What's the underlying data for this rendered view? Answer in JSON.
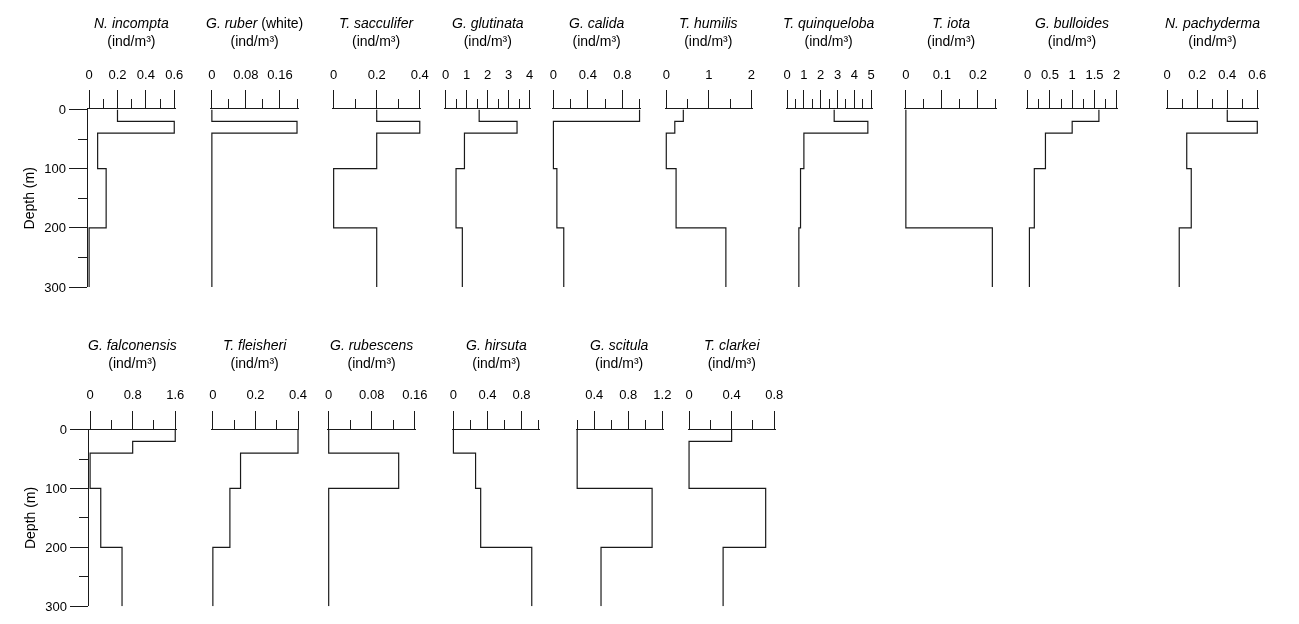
{
  "chart_data": [
    {
      "type": "step",
      "orientation": "horizontal",
      "title": "N. incompta",
      "xlabel": "(ind/m³)",
      "ylabel": "Depth (m)",
      "color": "#1a1a1a",
      "x": [
        0,
        20,
        40,
        100,
        200,
        300
      ],
      "values": [
        0.2,
        0.6,
        0.06,
        0.12,
        0,
        0
      ],
      "xlim": [
        0,
        0.6
      ],
      "xticks": [
        0,
        {
          "value": 0.1,
          "label": null
        },
        0.2,
        {
          "value": 0.3,
          "label": null
        },
        0.4,
        {
          "value": 0.5,
          "label": null
        },
        0.6
      ],
      "ylim": [
        300,
        0
      ],
      "yticks": [
        0,
        {
          "value": 50,
          "label": null
        },
        100,
        {
          "value": 150,
          "label": null
        },
        200,
        {
          "value": 250,
          "label": null
        },
        300
      ]
    },
    {
      "type": "step",
      "orientation": "horizontal",
      "title": "G. ruber (white)",
      "xlabel": "(ind/m³)",
      "color": "#1a1a1a",
      "x": [
        0,
        20,
        40,
        100,
        200,
        300
      ],
      "values": [
        0,
        0.2,
        0,
        0,
        0,
        0
      ],
      "xlim": [
        0,
        0.2
      ],
      "xticks": [
        0,
        {
          "value": 0.04,
          "label": null
        },
        0.08,
        {
          "value": 0.12,
          "label": null
        },
        0.16,
        {
          "value": 0.2,
          "label": null
        }
      ],
      "ylim": [
        300,
        0
      ],
      "tick_labels": "x"
    },
    {
      "type": "step",
      "orientation": "horizontal",
      "title": "T. sacculifer",
      "xlabel": "(ind/m³)",
      "color": "#1a1a1a",
      "x": [
        0,
        20,
        40,
        100,
        200,
        300
      ],
      "values": [
        0.2,
        0.4,
        0.2,
        0,
        0.2,
        0.2
      ],
      "xlim": [
        0,
        0.4
      ],
      "xticks": [
        0,
        {
          "value": 0.1,
          "label": null
        },
        0.2,
        {
          "value": 0.3,
          "label": null
        },
        0.4
      ],
      "ylim": [
        300,
        0
      ],
      "tick_labels": "x"
    },
    {
      "type": "step",
      "orientation": "horizontal",
      "title": "G. glutinata",
      "xlabel": "(ind/m³)",
      "color": "#1a1a1a",
      "x": [
        0,
        20,
        40,
        100,
        200,
        300
      ],
      "values": [
        1.6,
        3.4,
        0.9,
        0.5,
        0.8,
        0.8
      ],
      "xlim": [
        0,
        4
      ],
      "xticks": [
        0,
        {
          "value": 0.5,
          "label": null
        },
        1,
        {
          "value": 1.5,
          "label": null
        },
        2,
        {
          "value": 2.5,
          "label": null
        },
        3,
        {
          "value": 3.5,
          "label": null
        },
        4
      ],
      "ylim": [
        300,
        0
      ],
      "tick_labels": "x"
    },
    {
      "type": "step",
      "orientation": "horizontal",
      "title": "G. calida",
      "xlabel": "(ind/m³)",
      "color": "#1a1a1a",
      "x": [
        0,
        20,
        40,
        100,
        200,
        300
      ],
      "values": [
        1,
        0,
        0,
        0.04,
        0.12,
        0.12
      ],
      "xlim": [
        0,
        1
      ],
      "xticks": [
        0,
        {
          "value": 0.2,
          "label": null
        },
        0.4,
        {
          "value": 0.6,
          "label": null
        },
        0.8,
        {
          "value": 1,
          "label": null
        }
      ],
      "ylim": [
        300,
        0
      ],
      "tick_labels": "x"
    },
    {
      "type": "step",
      "orientation": "horizontal",
      "title": "T. humilis",
      "xlabel": "(ind/m³)",
      "color": "#1a1a1a",
      "x": [
        0,
        20,
        40,
        100,
        200,
        300
      ],
      "values": [
        0.4,
        0.2,
        0,
        0.23,
        1.4,
        1.4
      ],
      "xlim": [
        0,
        2
      ],
      "xticks": [
        0,
        {
          "value": 0.5,
          "label": null
        },
        1,
        {
          "value": 1.5,
          "label": null
        },
        2
      ],
      "ylim": [
        300,
        0
      ],
      "tick_labels": "x"
    },
    {
      "type": "step",
      "orientation": "horizontal",
      "title": "T. quinqueloba",
      "xlabel": "(ind/m³)",
      "color": "#1a1a1a",
      "x": [
        0,
        20,
        40,
        100,
        200,
        300
      ],
      "values": [
        2.8,
        4.8,
        1,
        0.8,
        0.7,
        0.7
      ],
      "xlim": [
        0,
        5
      ],
      "xticks": [
        0,
        {
          "value": 0.5,
          "label": null
        },
        1,
        {
          "value": 1.5,
          "label": null
        },
        2,
        {
          "value": 2.5,
          "label": null
        },
        3,
        {
          "value": 3.5,
          "label": null
        },
        4,
        {
          "value": 4.5,
          "label": null
        },
        5
      ],
      "ylim": [
        300,
        0
      ],
      "tick_labels": "x"
    },
    {
      "type": "step",
      "orientation": "horizontal",
      "title": "T. iota",
      "xlabel": "(ind/m³)",
      "color": "#1a1a1a",
      "x": [
        0,
        20,
        40,
        100,
        200,
        300
      ],
      "values": [
        0,
        0,
        0,
        0,
        0.24,
        0.24
      ],
      "xlim": [
        0,
        0.25
      ],
      "xticks": [
        0,
        {
          "value": 0.05,
          "label": null
        },
        0.1,
        {
          "value": 0.15,
          "label": null
        },
        0.2,
        {
          "value": 0.25,
          "label": null
        }
      ],
      "ylim": [
        300,
        0
      ],
      "tick_labels": "x"
    },
    {
      "type": "step",
      "orientation": "horizontal",
      "title": "G. bulloides",
      "xlabel": "(ind/m³)",
      "color": "#1a1a1a",
      "x": [
        0,
        20,
        40,
        100,
        200,
        300
      ],
      "values": [
        1.6,
        1,
        0.4,
        0.15,
        0.04,
        0.04
      ],
      "xlim": [
        0,
        2
      ],
      "xticks": [
        0,
        {
          "value": 0.25,
          "label": null
        },
        0.5,
        {
          "value": 0.75,
          "label": null
        },
        1,
        {
          "value": 1.25,
          "label": null
        },
        1.5,
        {
          "value": 1.75,
          "label": null
        },
        2
      ],
      "ylim": [
        300,
        0
      ],
      "tick_labels": "x"
    },
    {
      "type": "step",
      "orientation": "horizontal",
      "title": "N. pachyderma",
      "xlabel": "(ind/m³)",
      "color": "#1a1a1a",
      "x": [
        0,
        20,
        40,
        100,
        200,
        300
      ],
      "values": [
        0.4,
        0.6,
        0.13,
        0.16,
        0.08,
        0.08
      ],
      "xlim": [
        0,
        0.6
      ],
      "xticks": [
        0,
        {
          "value": 0.1,
          "label": null
        },
        0.2,
        {
          "value": 0.3,
          "label": null
        },
        0.4,
        {
          "value": 0.5,
          "label": null
        },
        0.6
      ],
      "ylim": [
        300,
        0
      ],
      "tick_labels": "x"
    },
    {
      "type": "step",
      "orientation": "horizontal",
      "title": "G. falconensis",
      "xlabel": "(ind/m³)",
      "ylabel": "Depth (m)",
      "color": "#1a1a1a",
      "x": [
        0,
        20,
        40,
        100,
        200,
        300
      ],
      "values": [
        1.6,
        0.8,
        0,
        0.2,
        0.6,
        0.6
      ],
      "xlim": [
        0,
        1.6
      ],
      "xticks": [
        0,
        {
          "value": 0.4,
          "label": null
        },
        0.8,
        {
          "value": 1.2,
          "label": null
        },
        1.6
      ],
      "ylim": [
        300,
        0
      ],
      "yticks": [
        0,
        {
          "value": 50,
          "label": null
        },
        100,
        {
          "value": 150,
          "label": null
        },
        200,
        {
          "value": 250,
          "label": null
        },
        300
      ]
    },
    {
      "type": "step",
      "orientation": "horizontal",
      "title": "T. fleisheri",
      "xlabel": "(ind/m³)",
      "color": "#1a1a1a",
      "x": [
        0,
        20,
        40,
        100,
        200,
        300
      ],
      "values": [
        0.4,
        0.4,
        0.13,
        0.08,
        0,
        0
      ],
      "xlim": [
        0,
        0.4
      ],
      "xticks": [
        0,
        {
          "value": 0.1,
          "label": null
        },
        0.2,
        {
          "value": 0.3,
          "label": null
        },
        0.4
      ],
      "ylim": [
        300,
        0
      ],
      "tick_labels": "x"
    },
    {
      "type": "step",
      "orientation": "horizontal",
      "title": "G. rubescens",
      "xlabel": "(ind/m³)",
      "color": "#1a1a1a",
      "x": [
        0,
        20,
        40,
        100,
        200,
        300
      ],
      "values": [
        0,
        0,
        0.13,
        0,
        0,
        0
      ],
      "xlim": [
        0,
        0.16
      ],
      "xticks": [
        0,
        {
          "value": 0.04,
          "label": null
        },
        0.08,
        {
          "value": 0.12,
          "label": null
        },
        0.16
      ],
      "ylim": [
        300,
        0
      ],
      "tick_labels": "x"
    },
    {
      "type": "step",
      "orientation": "horizontal",
      "title": "G. hirsuta",
      "xlabel": "(ind/m³)",
      "color": "#1a1a1a",
      "x": [
        0,
        20,
        40,
        100,
        200,
        300
      ],
      "values": [
        0,
        0,
        0.26,
        0.32,
        0.92,
        0.92
      ],
      "xlim": [
        0,
        1
      ],
      "xticks": [
        0,
        {
          "value": 0.2,
          "label": null
        },
        0.4,
        {
          "value": 0.6,
          "label": null
        },
        0.8,
        {
          "value": 1,
          "label": null
        }
      ],
      "ylim": [
        300,
        0
      ],
      "tick_labels": "x"
    },
    {
      "type": "step",
      "orientation": "horizontal",
      "title": "G. scitula",
      "xlabel": "(ind/m³)",
      "color": "#1a1a1a",
      "x": [
        0,
        20,
        40,
        100,
        200,
        300
      ],
      "values": [
        0.2,
        0.2,
        0.2,
        1.08,
        0.48,
        0.48
      ],
      "xlim": [
        0.2,
        1.2
      ],
      "xticks": [
        {
          "value": 0.2,
          "label": null
        },
        0.4,
        {
          "value": 0.6,
          "label": null
        },
        0.8,
        {
          "value": 1,
          "label": null
        },
        1.2
      ],
      "ylim": [
        300,
        0
      ],
      "tick_labels": "x"
    },
    {
      "type": "step",
      "orientation": "horizontal",
      "title": "T. clarkei",
      "xlabel": "(ind/m³)",
      "color": "#1a1a1a",
      "x": [
        0,
        20,
        40,
        100,
        200,
        300
      ],
      "values": [
        0.4,
        0,
        0,
        0.72,
        0.32,
        0.32
      ],
      "xlim": [
        0,
        0.8
      ],
      "xticks": [
        0,
        {
          "value": 0.2,
          "label": null
        },
        0.4,
        {
          "value": 0.6,
          "label": null
        },
        0.8
      ],
      "ylim": [
        300,
        0
      ],
      "tick_labels": "x"
    }
  ]
}
